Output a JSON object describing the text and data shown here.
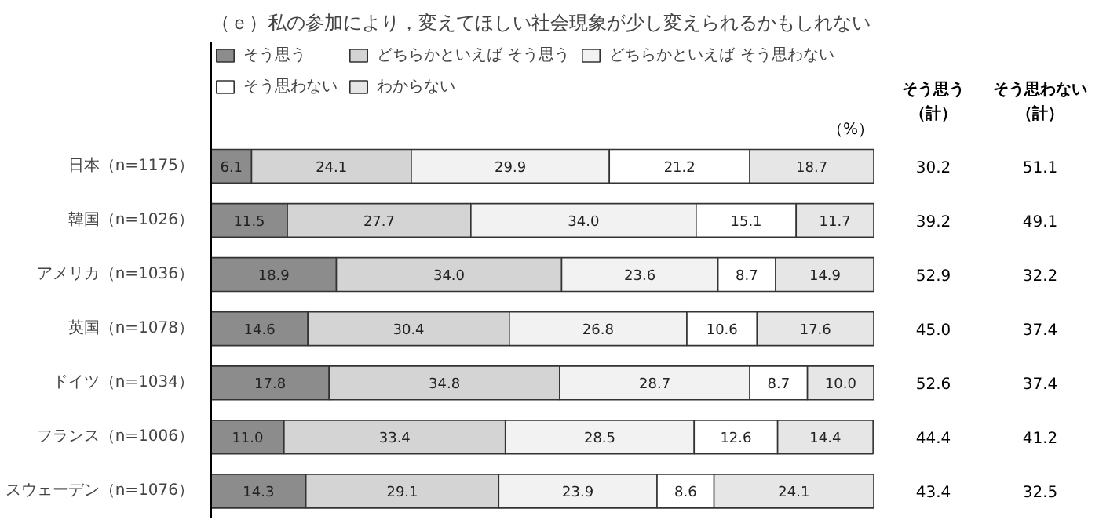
{
  "chart_data": {
    "type": "bar",
    "orientation": "horizontal",
    "stacked": true,
    "title": "（ｅ）私の参加により，変えてほしい社会現象が少し変えられるかもしれない",
    "categories": [
      "日本（n=1175）",
      "韓国（n=1026）",
      "アメリカ（n=1036）",
      "英国（n=1078）",
      "ドイツ（n=1034）",
      "フランス（n=1006）",
      "スウェーデン（n=1076）"
    ],
    "series": [
      {
        "name": "そう思う",
        "color": "#8c8c8c",
        "values": [
          6.1,
          11.5,
          18.9,
          14.6,
          17.8,
          11.0,
          14.3
        ],
        "value_labels": [
          "6.1",
          "11.5",
          "18.9",
          "14.6",
          "17.8",
          "11.0",
          "14.3"
        ]
      },
      {
        "name": "どちらかといえば そう思う",
        "color": "#d4d4d4",
        "values": [
          24.1,
          27.7,
          34.0,
          30.4,
          34.8,
          33.4,
          29.1
        ],
        "value_labels": [
          "24.1",
          "27.7",
          "34.0",
          "30.4",
          "34.8",
          "33.4",
          "29.1"
        ]
      },
      {
        "name": "どちらかといえば そう思わない",
        "color": "#f2f2f2",
        "values": [
          29.9,
          34.0,
          23.6,
          26.8,
          28.7,
          28.5,
          23.9
        ],
        "value_labels": [
          "29.9",
          "34.0",
          "23.6",
          "26.8",
          "28.7",
          "28.5",
          "23.9"
        ]
      },
      {
        "name": "そう思わない",
        "color": "#ffffff",
        "values": [
          21.2,
          15.1,
          8.7,
          10.6,
          8.7,
          12.6,
          8.6
        ],
        "value_labels": [
          "21.2",
          "15.1",
          "8.7",
          "10.6",
          "8.7",
          "12.6",
          "8.6"
        ]
      },
      {
        "name": "わからない",
        "color": "#e6e6e6",
        "values": [
          18.7,
          11.7,
          14.9,
          17.6,
          10.0,
          14.4,
          24.1
        ],
        "value_labels": [
          "18.7",
          "11.7",
          "14.9",
          "17.6",
          "10.0",
          "14.4",
          "24.1"
        ]
      }
    ],
    "xlim": [
      0,
      100
    ],
    "tick_labels": "y",
    "legend": "top",
    "annotations": [
      "（%）",
      "そう思う",
      "（計）",
      "そう思わない",
      "（計）",
      "30.2",
      "51.1",
      "39.2",
      "49.1",
      "52.9",
      "32.2",
      "45.0",
      "37.4",
      "52.6",
      "37.4",
      "44.4",
      "41.2",
      "43.4",
      "32.5"
    ]
  }
}
